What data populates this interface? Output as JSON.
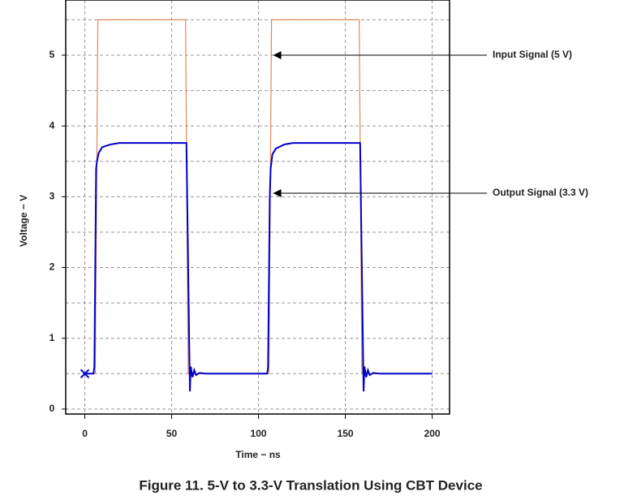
{
  "chart_data": {
    "type": "line",
    "title": "Figure 11.  5-V to 3.3-V Translation Using CBT Device",
    "x_label": "Time − ns",
    "y_label": "Voltage − V",
    "xlim": [
      -11,
      210
    ],
    "ylim": [
      -0.07,
      5.78
    ],
    "xticks": [
      0,
      50,
      100,
      150,
      200
    ],
    "yticks": [
      0,
      1,
      2,
      3,
      4,
      5
    ],
    "yminorticks": [
      0.5,
      1.5,
      2.5,
      3.5,
      4.5,
      5.5
    ],
    "grid": true,
    "series": [
      {
        "name": "Input Signal (5 V)",
        "color": "#e08a55",
        "x": [
          0,
          6,
          7.5,
          58,
          59.5,
          106,
          107.5,
          158,
          159.5,
          200
        ],
        "values": [
          0.5,
          0.5,
          5.5,
          5.5,
          0.5,
          0.5,
          5.5,
          5.5,
          0.5,
          0.5
        ]
      },
      {
        "name": "Output Signal (3.3 V)",
        "color": "#0000cc",
        "x": [
          0,
          5,
          5.5,
          6.5,
          7,
          8,
          10,
          15,
          20,
          58.5,
          59.5,
          60.5,
          61,
          62,
          63,
          64,
          66,
          70,
          105,
          105.5,
          106.5,
          107,
          108,
          110,
          115,
          120,
          158.5,
          159.5,
          160.5,
          161,
          162,
          163,
          164,
          166,
          170,
          200
        ],
        "values": [
          0.5,
          0.5,
          0.6,
          3.4,
          3.5,
          3.62,
          3.7,
          3.74,
          3.76,
          3.76,
          2.0,
          0.25,
          0.6,
          0.45,
          0.55,
          0.48,
          0.51,
          0.5,
          0.5,
          0.6,
          3.0,
          3.4,
          3.6,
          3.68,
          3.74,
          3.76,
          3.76,
          2.0,
          0.25,
          0.6,
          0.45,
          0.55,
          0.48,
          0.51,
          0.5,
          0.5
        ]
      }
    ],
    "start_marker": {
      "x": 0,
      "y": 0.5
    },
    "annotations": [
      {
        "text": "Input Signal (5 V)",
        "x": 107,
        "y": 5
      },
      {
        "text": "Output Signal (3.3 V)",
        "x": 107,
        "y": 3.05
      }
    ]
  }
}
